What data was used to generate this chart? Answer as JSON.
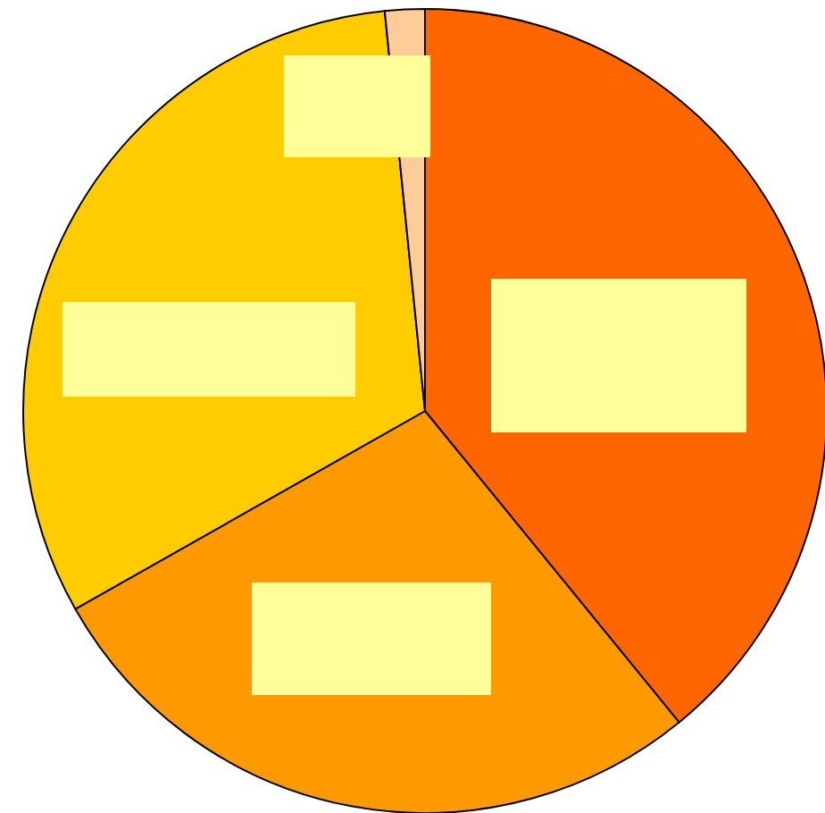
{
  "chart_data": {
    "type": "pie",
    "categories": [
      null,
      null,
      null,
      null
    ],
    "values": [
      39.1,
      27.7,
      31.6,
      1.6
    ],
    "colors": [
      "#ff6600",
      "#ff9900",
      "#ffcc00",
      "#ffcc99"
    ]
  }
}
